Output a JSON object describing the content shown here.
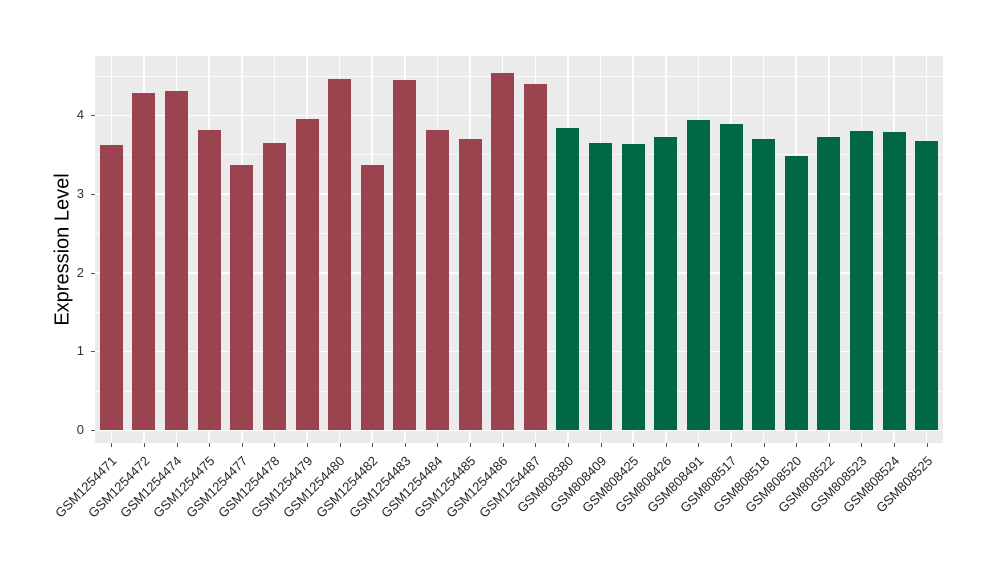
{
  "figure": {
    "panel_background": "#EBEBEB",
    "grid_color": "#FFFFFF",
    "tick_color": "#555555",
    "axis_text_color": "#262626"
  },
  "chart_data": {
    "type": "bar",
    "title": "",
    "xlabel": "",
    "ylabel": "Expression Level",
    "ylim": [
      0,
      4.75
    ],
    "yticks": [
      "0",
      "1",
      "2",
      "3",
      "4"
    ],
    "grid": true,
    "legend_position": "none",
    "group_colors": {
      "maroon": "#9B4450",
      "green": "#006747"
    },
    "bars": [
      {
        "label": "GSM1254471",
        "value": 3.62,
        "group": "maroon"
      },
      {
        "label": "GSM1254472",
        "value": 4.28,
        "group": "maroon"
      },
      {
        "label": "GSM1254474",
        "value": 4.3,
        "group": "maroon"
      },
      {
        "label": "GSM1254475",
        "value": 3.81,
        "group": "maroon"
      },
      {
        "label": "GSM1254477",
        "value": 3.37,
        "group": "maroon"
      },
      {
        "label": "GSM1254478",
        "value": 3.65,
        "group": "maroon"
      },
      {
        "label": "GSM1254479",
        "value": 3.95,
        "group": "maroon"
      },
      {
        "label": "GSM1254480",
        "value": 4.46,
        "group": "maroon"
      },
      {
        "label": "GSM1254482",
        "value": 3.37,
        "group": "maroon"
      },
      {
        "label": "GSM1254483",
        "value": 4.44,
        "group": "maroon"
      },
      {
        "label": "GSM1254484",
        "value": 3.81,
        "group": "maroon"
      },
      {
        "label": "GSM1254485",
        "value": 3.7,
        "group": "maroon"
      },
      {
        "label": "GSM1254486",
        "value": 4.53,
        "group": "maroon"
      },
      {
        "label": "GSM1254487",
        "value": 4.39,
        "group": "maroon"
      },
      {
        "label": "GSM808380",
        "value": 3.83,
        "group": "green"
      },
      {
        "label": "GSM808409",
        "value": 3.65,
        "group": "green"
      },
      {
        "label": "GSM808425",
        "value": 3.63,
        "group": "green"
      },
      {
        "label": "GSM808426",
        "value": 3.72,
        "group": "green"
      },
      {
        "label": "GSM808491",
        "value": 3.94,
        "group": "green"
      },
      {
        "label": "GSM808517",
        "value": 3.88,
        "group": "green"
      },
      {
        "label": "GSM808518",
        "value": 3.7,
        "group": "green"
      },
      {
        "label": "GSM808520",
        "value": 3.48,
        "group": "green"
      },
      {
        "label": "GSM808522",
        "value": 3.72,
        "group": "green"
      },
      {
        "label": "GSM808523",
        "value": 3.8,
        "group": "green"
      },
      {
        "label": "GSM808524",
        "value": 3.78,
        "group": "green"
      },
      {
        "label": "GSM808525",
        "value": 3.67,
        "group": "green"
      }
    ]
  }
}
